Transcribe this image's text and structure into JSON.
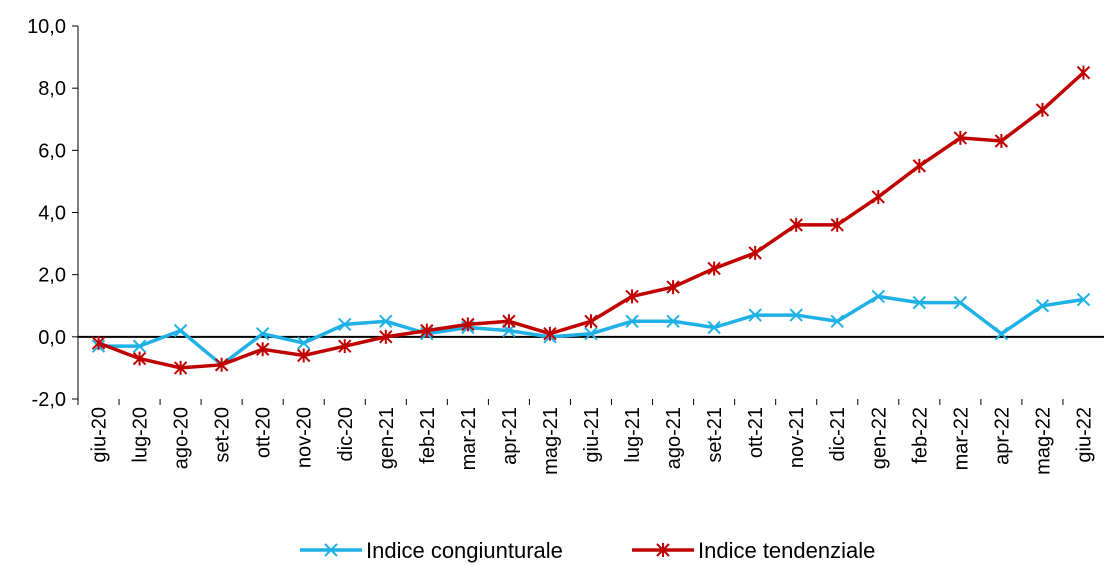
{
  "chart_data": {
    "type": "line",
    "categories": [
      "giu-20",
      "lug-20",
      "ago-20",
      "set-20",
      "ott-20",
      "nov-20",
      "dic-20",
      "gen-21",
      "feb-21",
      "mar-21",
      "apr-21",
      "mag-21",
      "giu-21",
      "lug-21",
      "ago-21",
      "set-21",
      "ott-21",
      "nov-21",
      "dic-21",
      "gen-22",
      "feb-22",
      "mar-22",
      "apr-22",
      "mag-22",
      "giu-22"
    ],
    "series": [
      {
        "name": "Indice congiunturale",
        "color": "#1fb1e6",
        "marker": "x",
        "values": [
          -0.3,
          -0.3,
          0.2,
          -0.9,
          0.1,
          -0.2,
          0.4,
          0.5,
          0.1,
          0.3,
          0.2,
          0.0,
          0.1,
          0.5,
          0.5,
          0.3,
          0.7,
          0.7,
          0.5,
          1.3,
          1.1,
          1.1,
          0.1,
          1.0,
          1.2
        ]
      },
      {
        "name": "Indice tendenziale",
        "color": "#c00000",
        "marker": "star",
        "values": [
          -0.2,
          -0.7,
          -1.0,
          -0.9,
          -0.4,
          -0.6,
          -0.3,
          0.0,
          0.2,
          0.4,
          0.5,
          0.1,
          0.5,
          1.3,
          1.6,
          2.2,
          2.7,
          3.6,
          3.6,
          4.5,
          5.5,
          6.4,
          6.3,
          7.3,
          8.5
        ]
      }
    ],
    "ylim": [
      -2,
      10
    ],
    "yticks": [
      {
        "value": -2,
        "label": "-2,0"
      },
      {
        "value": 0,
        "label": "0,0"
      },
      {
        "value": 2,
        "label": "2,0"
      },
      {
        "value": 4,
        "label": "4,0"
      },
      {
        "value": 6,
        "label": "6,0"
      },
      {
        "value": 8,
        "label": "8,0"
      },
      {
        "value": 10,
        "label": "10,0"
      }
    ],
    "grid": false,
    "legend": "bottom"
  }
}
